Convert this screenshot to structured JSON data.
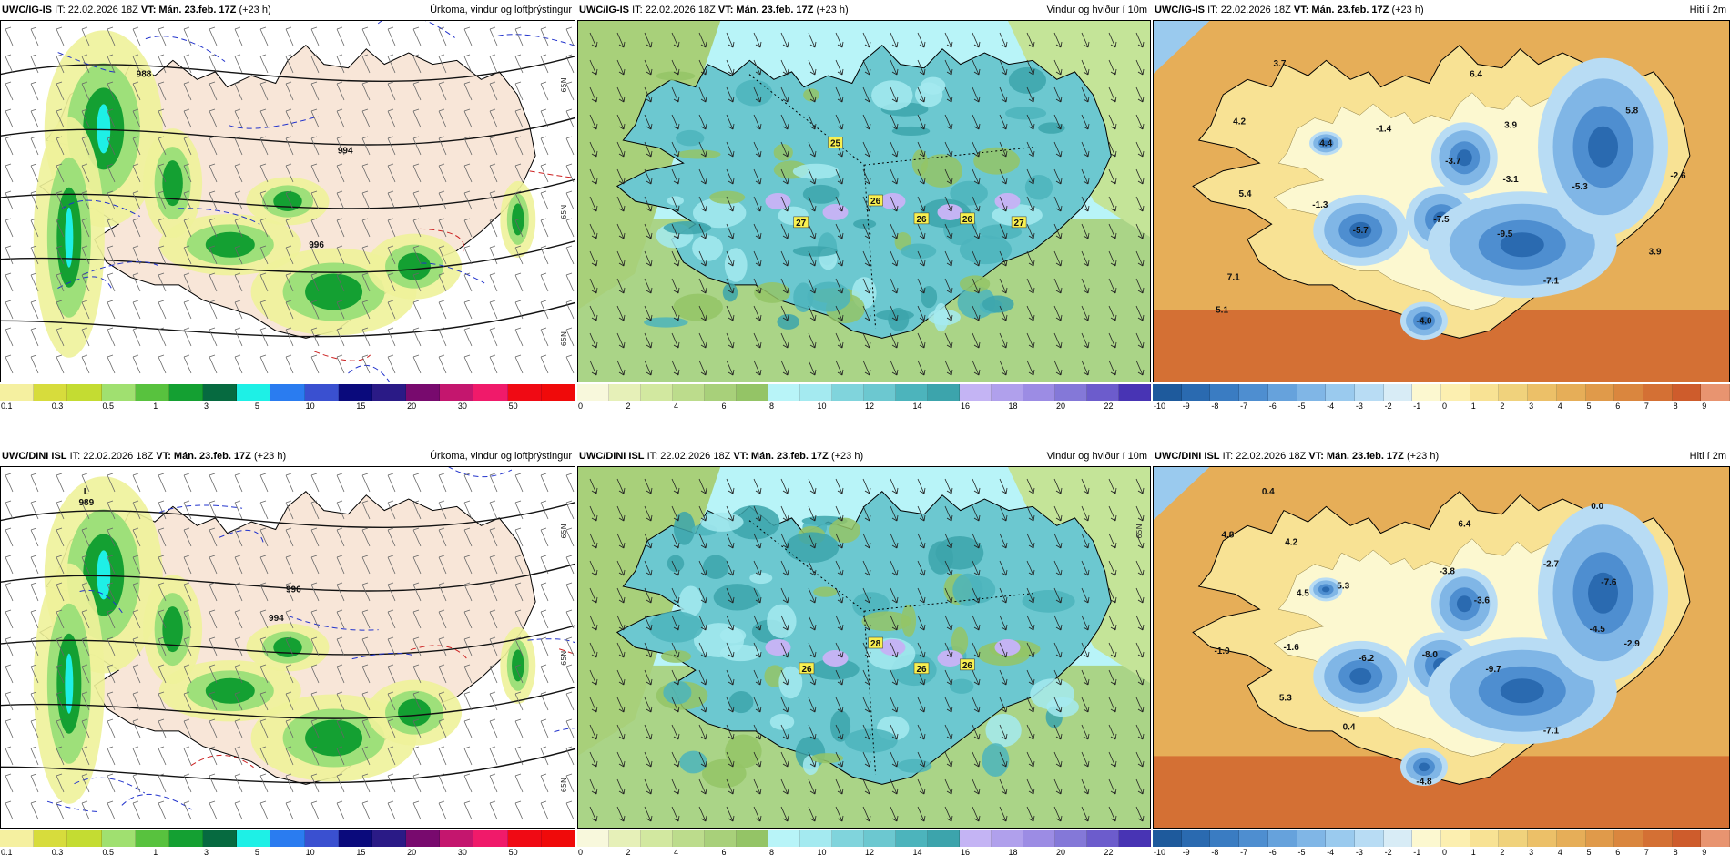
{
  "panels": [
    {
      "id": "p11",
      "source": "UWC/IG-IS",
      "it": "IT: 22.02.2026 18Z",
      "vt": "VT: Mán. 23.feb. 17Z",
      "lead": "(+23 h)",
      "field": "Úrkoma, vindur og loftþrýstingur",
      "colorbar": "precip",
      "labels": [
        {
          "text": "988"
        },
        {
          "text": "996"
        },
        {
          "text": "994"
        }
      ],
      "lat_labels": [
        "65N",
        "65N",
        "65N"
      ]
    },
    {
      "id": "p12",
      "source": "UWC/IG-IS",
      "it": "IT: 22.02.2026 18Z",
      "vt": "VT: Mán. 23.feb. 17Z",
      "lead": "(+23 h)",
      "field": "Vindur og hviður í 10m",
      "colorbar": "wind",
      "labels": [
        {
          "text": "25"
        },
        {
          "text": "26"
        },
        {
          "text": "27"
        },
        {
          "text": "26"
        },
        {
          "text": "26"
        },
        {
          "text": "27"
        }
      ]
    },
    {
      "id": "p13",
      "source": "UWC/IG-IS",
      "it": "IT: 22.02.2026 18Z",
      "vt": "VT: Mán. 23.feb. 17Z",
      "lead": "(+23 h)",
      "field": "Hiti í 2m",
      "colorbar": "temp",
      "labels": [
        {
          "text": "3.7"
        },
        {
          "text": "6.4"
        },
        {
          "text": "4.2"
        },
        {
          "text": "-1.4"
        },
        {
          "text": "3.9"
        },
        {
          "text": "5.8"
        },
        {
          "text": "4.4"
        },
        {
          "text": "-3.7"
        },
        {
          "text": "-3.1"
        },
        {
          "text": "-5.3"
        },
        {
          "text": "-2.6"
        },
        {
          "text": "5.4"
        },
        {
          "text": "-1.3"
        },
        {
          "text": "-5.7"
        },
        {
          "text": "-7.5"
        },
        {
          "text": "-9.5"
        },
        {
          "text": "3.9"
        },
        {
          "text": "7.1"
        },
        {
          "text": "-7.1"
        },
        {
          "text": "5.1"
        },
        {
          "text": "-4.0"
        }
      ]
    },
    {
      "id": "p21",
      "source": "UWC/DINI ISL",
      "it": "IT: 22.02.2026 18Z",
      "vt": "VT: Mán. 23.feb. 17Z",
      "lead": "(+23 h)",
      "field": "Úrkoma, vindur og loftþrýstingur",
      "colorbar": "precip",
      "labels": [
        {
          "text": "L"
        },
        {
          "text": "989"
        },
        {
          "text": "996"
        },
        {
          "text": "994"
        }
      ],
      "lat_labels": [
        "65N",
        "65N",
        "65N"
      ]
    },
    {
      "id": "p22",
      "source": "UWC/DINI ISL",
      "it": "IT: 22.02.2026 18Z",
      "vt": "VT: Mán. 23.feb. 17Z",
      "lead": "(+23 h)",
      "field": "Vindur og hviður í 10m",
      "colorbar": "wind",
      "labels": [
        {
          "text": "28"
        },
        {
          "text": "26"
        },
        {
          "text": "26"
        },
        {
          "text": "26"
        }
      ],
      "lat_labels": [
        "65N"
      ]
    },
    {
      "id": "p23",
      "source": "UWC/DINI ISL",
      "it": "IT: 22.02.2026 18Z",
      "vt": "VT: Mán. 23.feb. 17Z",
      "lead": "(+23 h)",
      "field": "Hiti í 2m",
      "colorbar": "temp",
      "labels": [
        {
          "text": "0.4"
        },
        {
          "text": "0.0"
        },
        {
          "text": "6.4"
        },
        {
          "text": "4.8"
        },
        {
          "text": "4.2"
        },
        {
          "text": "-3.8"
        },
        {
          "text": "-2.7"
        },
        {
          "text": "4.5"
        },
        {
          "text": "5.3"
        },
        {
          "text": "-3.6"
        },
        {
          "text": "-7.6"
        },
        {
          "text": "-4.5"
        },
        {
          "text": "-1.0"
        },
        {
          "text": "-1.6"
        },
        {
          "text": "-6.2"
        },
        {
          "text": "-8.0"
        },
        {
          "text": "-9.7"
        },
        {
          "text": "-2.9"
        },
        {
          "text": "5.3"
        },
        {
          "text": "0.4"
        },
        {
          "text": "-7.1"
        },
        {
          "text": "-4.8"
        }
      ]
    }
  ],
  "colorbars": {
    "precip": {
      "colors": [
        "#f5f0a0",
        "#d7dc3c",
        "#c4dc32",
        "#a0e070",
        "#58c23e",
        "#14a032",
        "#066a40",
        "#1ef0e6",
        "#2a7cf0",
        "#3a50d0",
        "#0a0a7c",
        "#2a1a86",
        "#780a6e",
        "#c4166e",
        "#f01a6a",
        "#f00a14",
        "#f00a0a"
      ],
      "ticks": [
        "0.1",
        "0.3",
        "0.5",
        "1",
        "3",
        "5",
        "10",
        "15",
        "20",
        "30",
        "50"
      ]
    },
    "wind": {
      "colors": [
        "#f8f8dc",
        "#e6f0b8",
        "#d2e8a0",
        "#bcdc8c",
        "#a8d07a",
        "#94c466",
        "#b8f4f8",
        "#a4eaf0",
        "#80d4dc",
        "#6cc8d0",
        "#4cb4bc",
        "#3ca4ac",
        "#c4b4f4",
        "#b0a0ec",
        "#9c8ce4",
        "#8478d8",
        "#6c5ccc",
        "#4834b4"
      ],
      "ticks": [
        "0",
        "2",
        "4",
        "6",
        "8",
        "10",
        "12",
        "14",
        "16",
        "18",
        "20",
        "22"
      ]
    },
    "temp": {
      "colors": [
        "#1e5a9c",
        "#2a6ab0",
        "#3a7cc2",
        "#4e8ed0",
        "#66a2dc",
        "#80b6e6",
        "#9acaee",
        "#b8dcf4",
        "#d8ecf6",
        "#fcf8d0",
        "#fcefb0",
        "#f8e294",
        "#f0d27c",
        "#ecc068",
        "#e6ae58",
        "#e09a4a",
        "#da863e",
        "#d47034",
        "#ce5c2c",
        "#e89470"
      ],
      "ticks": [
        "-10",
        "-9",
        "-8",
        "-7",
        "-6",
        "-5",
        "-4",
        "-3",
        "-2",
        "-1",
        "0",
        "1",
        "2",
        "3",
        "4",
        "5",
        "6",
        "7",
        "8",
        "9"
      ]
    }
  }
}
